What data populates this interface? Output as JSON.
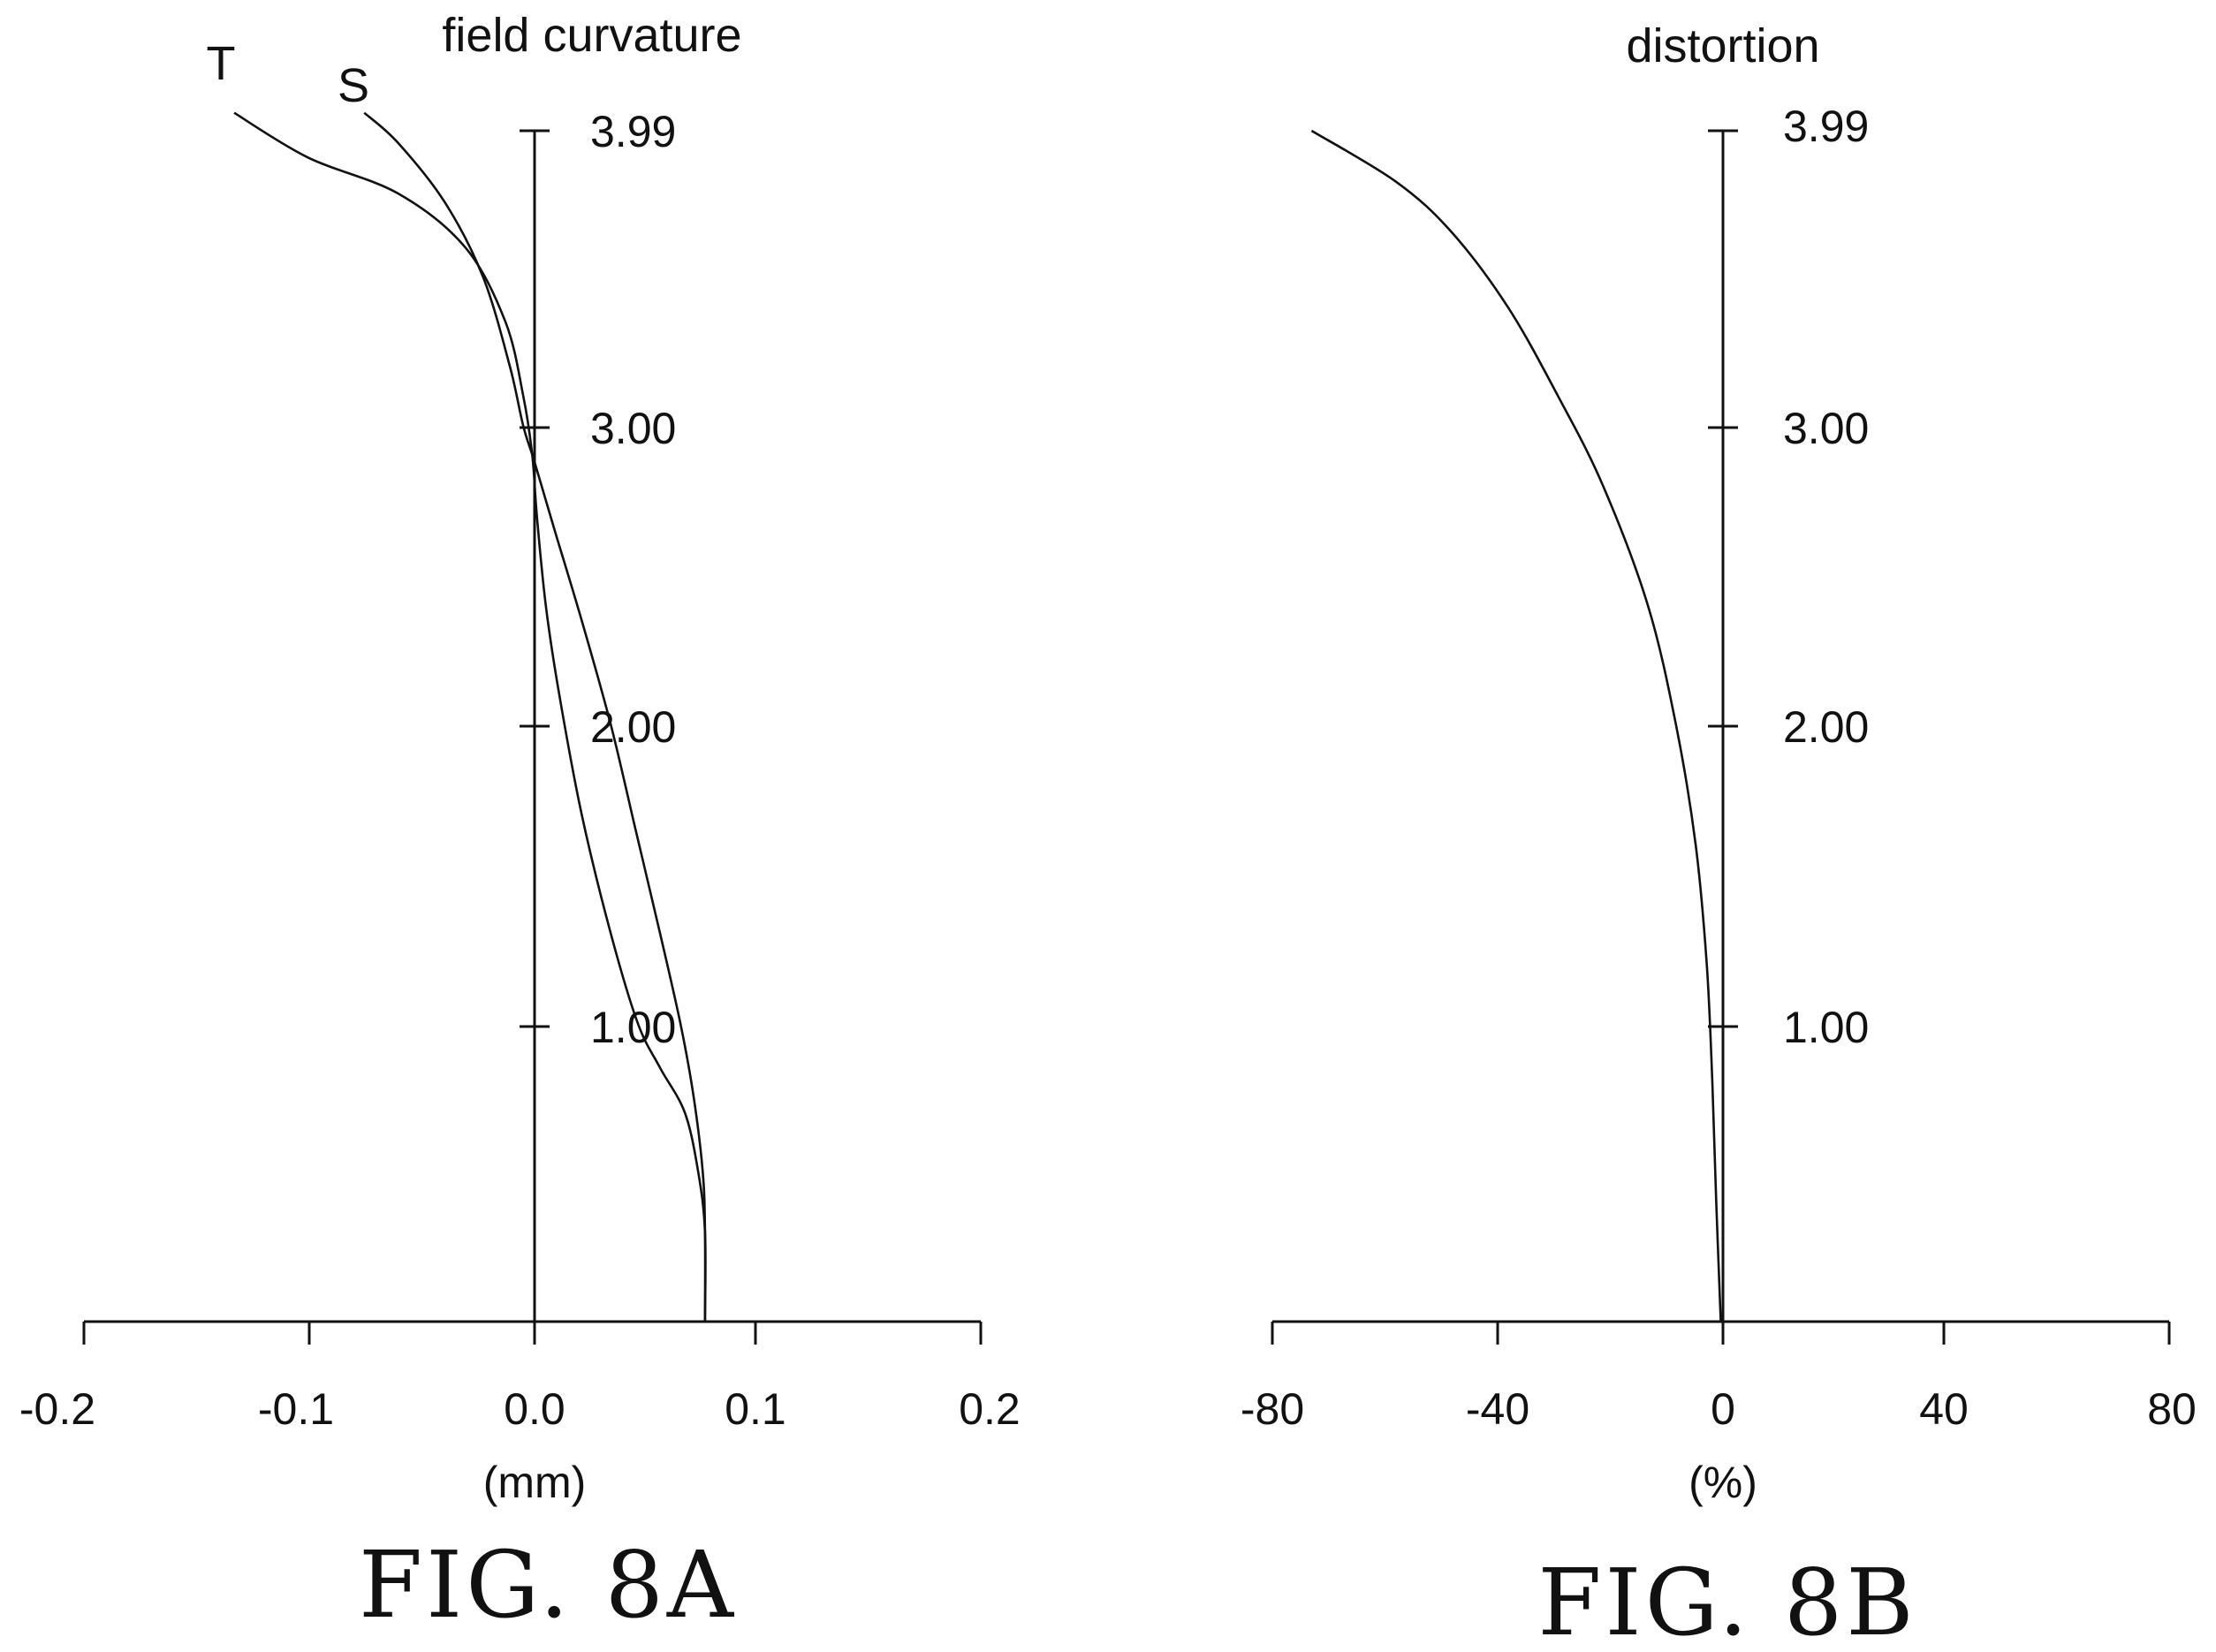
{
  "chart_data": [
    {
      "type": "line",
      "title": "field curvature",
      "xlabel": "(mm)",
      "ylabel": "",
      "xlim": [
        -0.2,
        0.2
      ],
      "ylim": [
        0,
        3.99
      ],
      "x_ticks": [
        "-0.2",
        "-0.1",
        "0.0",
        "0.1",
        "0.2"
      ],
      "y_ticks": [
        "1.00",
        "2.00",
        "3.00",
        "3.99"
      ],
      "series": [
        {
          "name": "T",
          "points": [
            [
              0.077,
              0.0
            ],
            [
              0.077,
              0.3
            ],
            [
              0.074,
              0.5
            ],
            [
              0.068,
              0.7
            ],
            [
              0.057,
              0.85
            ],
            [
              0.047,
              1.0
            ],
            [
              0.035,
              1.3
            ],
            [
              0.022,
              1.7
            ],
            [
              0.012,
              2.1
            ],
            [
              0.006,
              2.4
            ],
            [
              0.002,
              2.7
            ],
            [
              0.0,
              2.9
            ],
            [
              -0.004,
              3.1
            ],
            [
              -0.012,
              3.35
            ],
            [
              -0.03,
              3.6
            ],
            [
              -0.06,
              3.78
            ],
            [
              -0.1,
              3.9
            ],
            [
              -0.133,
              4.05
            ]
          ]
        },
        {
          "name": "S",
          "points": [
            [
              0.077,
              0.0
            ],
            [
              0.077,
              0.3
            ],
            [
              0.076,
              0.5
            ],
            [
              0.072,
              0.75
            ],
            [
              0.066,
              1.0
            ],
            [
              0.057,
              1.3
            ],
            [
              0.046,
              1.65
            ],
            [
              0.035,
              2.0
            ],
            [
              0.022,
              2.35
            ],
            [
              0.01,
              2.65
            ],
            [
              0.001,
              2.88
            ],
            [
              -0.004,
              3.0
            ],
            [
              -0.01,
              3.2
            ],
            [
              -0.022,
              3.5
            ],
            [
              -0.039,
              3.75
            ],
            [
              -0.06,
              3.95
            ],
            [
              -0.075,
              4.05
            ]
          ]
        }
      ],
      "curve_labels": [
        "T",
        "S"
      ],
      "caption": "FIG. 8A"
    },
    {
      "type": "line",
      "title": "distortion",
      "xlabel": "(%)",
      "ylabel": "",
      "xlim": [
        -80,
        80
      ],
      "ylim": [
        0,
        3.99
      ],
      "x_ticks": [
        "-80",
        "-40",
        "0",
        "40",
        "80"
      ],
      "y_ticks": [
        "1.00",
        "2.00",
        "3.00",
        "3.99"
      ],
      "series": [
        {
          "points": [
            [
              0.0,
              0.0
            ],
            [
              -0.8,
              0.4
            ],
            [
              -1.5,
              0.8
            ],
            [
              -2.5,
              1.2
            ],
            [
              -4.5,
              1.6
            ],
            [
              -8.0,
              2.0
            ],
            [
              -13.0,
              2.4
            ],
            [
              -21.0,
              2.8
            ],
            [
              -29.0,
              3.1
            ],
            [
              -38.0,
              3.4
            ],
            [
              -48.0,
              3.65
            ],
            [
              -58.0,
              3.82
            ],
            [
              -73.0,
              3.99
            ]
          ]
        }
      ],
      "caption": "FIG. 8B"
    }
  ]
}
